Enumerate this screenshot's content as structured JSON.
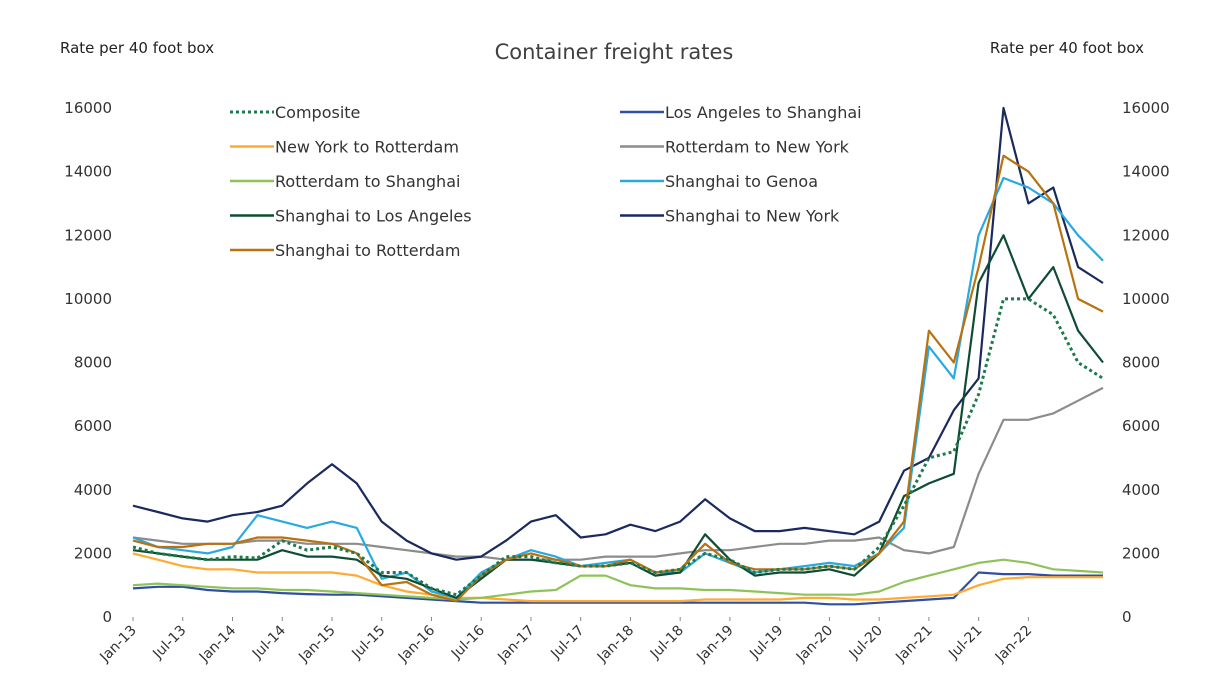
{
  "chart_data": {
    "type": "line",
    "title": "Container freight rates",
    "ylabel_left": "Rate per 40 foot box",
    "ylabel_right": "Rate per 40 foot box",
    "ylim": [
      0,
      16000
    ],
    "yticks": [
      0,
      2000,
      4000,
      6000,
      8000,
      10000,
      12000,
      14000,
      16000
    ],
    "xlim": [
      "2013-01",
      "2022-10"
    ],
    "xticks": [
      "Jan-13",
      "Jul-13",
      "Jan-14",
      "Jul-14",
      "Jan-15",
      "Jul-15",
      "Jan-16",
      "Jul-16",
      "Jan-17",
      "Jul-17",
      "Jan-18",
      "Jul-18",
      "Jan-19",
      "Jul-19",
      "Jan-20",
      "Jul-20",
      "Jan-21",
      "Jul-21",
      "Jan-22"
    ],
    "grid": false,
    "legend_position": "top-left",
    "x": [
      "2013-01",
      "2013-04",
      "2013-07",
      "2013-10",
      "2014-01",
      "2014-04",
      "2014-07",
      "2014-10",
      "2015-01",
      "2015-04",
      "2015-07",
      "2015-10",
      "2016-01",
      "2016-04",
      "2016-07",
      "2016-10",
      "2017-01",
      "2017-04",
      "2017-07",
      "2017-10",
      "2018-01",
      "2018-04",
      "2018-07",
      "2018-10",
      "2019-01",
      "2019-04",
      "2019-07",
      "2019-10",
      "2020-01",
      "2020-04",
      "2020-07",
      "2020-10",
      "2021-01",
      "2021-04",
      "2021-07",
      "2021-10",
      "2022-01",
      "2022-04",
      "2022-07",
      "2022-10"
    ],
    "series": [
      {
        "name": "Composite",
        "color": "#1e7a4c",
        "dash": "dotted",
        "values": [
          2200,
          2000,
          1900,
          1800,
          1900,
          1850,
          2400,
          2100,
          2200,
          2000,
          1400,
          1400,
          900,
          700,
          1300,
          1900,
          1900,
          1700,
          1600,
          1600,
          1700,
          1400,
          1500,
          2000,
          1800,
          1400,
          1500,
          1500,
          1600,
          1500,
          2200,
          3500,
          5000,
          5200,
          7000,
          10000,
          10000,
          9500,
          8000,
          7500
        ]
      },
      {
        "name": "Los Angeles to Shanghai",
        "color": "#2e4fa3",
        "dash": "solid",
        "values": [
          900,
          950,
          950,
          850,
          800,
          800,
          750,
          720,
          700,
          700,
          650,
          600,
          550,
          500,
          450,
          450,
          450,
          450,
          450,
          450,
          450,
          450,
          450,
          450,
          450,
          450,
          450,
          450,
          400,
          400,
          450,
          500,
          550,
          600,
          1400,
          1350,
          1350,
          1300,
          1300,
          1300
        ]
      },
      {
        "name": "New York to Rotterdam",
        "color": "#ffaa33",
        "dash": "solid",
        "values": [
          2000,
          1800,
          1600,
          1500,
          1500,
          1400,
          1400,
          1400,
          1400,
          1300,
          1000,
          800,
          700,
          600,
          600,
          550,
          500,
          500,
          500,
          500,
          500,
          500,
          500,
          550,
          550,
          550,
          550,
          600,
          600,
          550,
          550,
          600,
          650,
          700,
          1000,
          1200,
          1250,
          1250,
          1250,
          1250
        ]
      },
      {
        "name": "Rotterdam to New York",
        "color": "#8c8c8c",
        "dash": "solid",
        "values": [
          2500,
          2400,
          2300,
          2300,
          2300,
          2400,
          2400,
          2300,
          2300,
          2300,
          2200,
          2100,
          2000,
          1900,
          1900,
          1800,
          1800,
          1800,
          1800,
          1900,
          1900,
          1900,
          2000,
          2100,
          2100,
          2200,
          2300,
          2300,
          2400,
          2400,
          2500,
          2100,
          2000,
          2200,
          4500,
          6200,
          6200,
          6400,
          6800,
          7200
        ]
      },
      {
        "name": "Rotterdam to Shanghai",
        "color": "#8fc35a",
        "dash": "solid",
        "values": [
          1000,
          1050,
          1000,
          950,
          900,
          900,
          850,
          850,
          800,
          750,
          700,
          650,
          600,
          550,
          600,
          700,
          800,
          850,
          1300,
          1300,
          1000,
          900,
          900,
          850,
          850,
          800,
          750,
          700,
          700,
          700,
          800,
          1100,
          1300,
          1500,
          1700,
          1800,
          1700,
          1500,
          1450,
          1400
        ]
      },
      {
        "name": "Shanghai to Genoa",
        "color": "#29a9e0",
        "dash": "solid",
        "values": [
          2500,
          2200,
          2100,
          2000,
          2200,
          3200,
          3000,
          2800,
          3000,
          2800,
          1200,
          1400,
          800,
          600,
          1400,
          1800,
          2100,
          1900,
          1600,
          1700,
          1800,
          1400,
          1400,
          2000,
          1700,
          1400,
          1500,
          1600,
          1700,
          1600,
          2000,
          2800,
          8500,
          7500,
          12000,
          13800,
          13500,
          13000,
          12000,
          11200
        ]
      },
      {
        "name": "Shanghai to Los Angeles",
        "color": "#0e4d33",
        "dash": "solid",
        "values": [
          2100,
          2000,
          1900,
          1800,
          1800,
          1800,
          2100,
          1900,
          1900,
          1800,
          1300,
          1200,
          900,
          600,
          1200,
          1800,
          1800,
          1700,
          1600,
          1600,
          1700,
          1300,
          1400,
          2600,
          1800,
          1300,
          1400,
          1400,
          1500,
          1300,
          2000,
          3800,
          4200,
          4500,
          10500,
          12000,
          10000,
          11000,
          9000,
          8000
        ]
      },
      {
        "name": "Shanghai to New York",
        "color": "#1a2a5e",
        "dash": "solid",
        "values": [
          3500,
          3300,
          3100,
          3000,
          3200,
          3300,
          3500,
          4200,
          4800,
          4200,
          3000,
          2400,
          2000,
          1800,
          1900,
          2400,
          3000,
          3200,
          2500,
          2600,
          2900,
          2700,
          3000,
          3700,
          3100,
          2700,
          2700,
          2800,
          2700,
          2600,
          3000,
          4600,
          5000,
          6500,
          7500,
          16000,
          13000,
          13500,
          11000,
          10500
        ]
      },
      {
        "name": "Shanghai to Rotterdam",
        "color": "#b8720f",
        "dash": "solid",
        "values": [
          2400,
          2200,
          2200,
          2300,
          2300,
          2500,
          2500,
          2400,
          2300,
          2000,
          1000,
          1100,
          700,
          500,
          1300,
          1800,
          2000,
          1800,
          1600,
          1600,
          1800,
          1400,
          1500,
          2300,
          1700,
          1500,
          1500,
          1500,
          1600,
          1500,
          2000,
          3000,
          9000,
          8000,
          11000,
          14500,
          14000,
          13000,
          10000,
          9600
        ]
      }
    ]
  }
}
